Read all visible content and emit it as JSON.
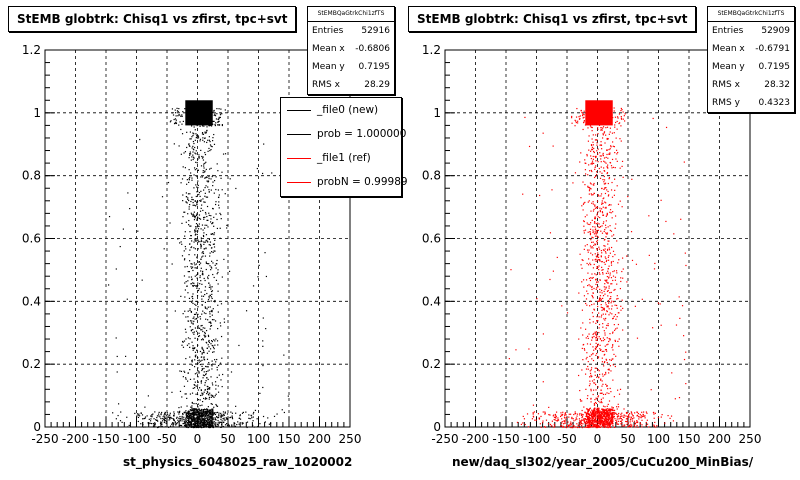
{
  "charts": [
    {
      "id": "left",
      "title": "StEMB globtrk: Chisq1 vs zfirst, tpc+svt",
      "stats": {
        "name": "StEMBQaGtrkChi1zfTS",
        "entries_label": "Entries",
        "entries": "52916",
        "mean_x_label": "Mean x",
        "mean_x": "-0.6806",
        "mean_y_label": "Mean y",
        "mean_y": "0.7195",
        "rms_x_label": "RMS x",
        "rms_x": "28.29"
      },
      "legend": [
        {
          "label": "_file0 (new)",
          "color": "#000000"
        },
        {
          "label": "prob = 1.000000",
          "color": "#000000"
        },
        {
          "label": "_file1 (ref)",
          "color": "#ff0000"
        },
        {
          "label": "probN = 0.99989",
          "color": "#ff0000"
        }
      ],
      "xlabel": "st_physics_6048025_raw_1020002",
      "color": "#000000"
    },
    {
      "id": "right",
      "title": "StEMB globtrk: Chisq1 vs zfirst, tpc+svt",
      "stats": {
        "name": "StEMBQaGtrkChi1zfTS",
        "entries_label": "Entries",
        "entries": "52909",
        "mean_x_label": "Mean x",
        "mean_x": "-0.6791",
        "mean_y_label": "Mean y",
        "mean_y": "0.7195",
        "rms_x_label": "RMS x",
        "rms_x": "28.32",
        "rms_y_label": "RMS y",
        "rms_y": "0.4323"
      },
      "xlabel": "new/daq_sl302/year_2005/CuCu200_MinBias/",
      "color": "#ff0000"
    }
  ],
  "chart_data": [
    {
      "type": "scatter",
      "xlim": [
        -250,
        250
      ],
      "ylim": [
        0,
        1.2
      ],
      "xticks": [
        -250,
        -200,
        -150,
        -100,
        -50,
        0,
        50,
        100,
        150,
        200,
        250
      ],
      "yticks": [
        0,
        0.2,
        0.4,
        0.6,
        0.8,
        1,
        1.2
      ],
      "grid": true,
      "clusters": [
        {
          "x": [
            -20,
            25
          ],
          "y": [
            0.96,
            1.02
          ],
          "density": "dense"
        },
        {
          "x": [
            -20,
            25
          ],
          "y": [
            0.0,
            0.05
          ],
          "density": "dense"
        },
        {
          "x": [
            -150,
            150
          ],
          "y": [
            0.0,
            0.05
          ],
          "density": "sparse"
        },
        {
          "x": [
            -50,
            40
          ],
          "y": [
            0.05,
            0.96
          ],
          "density": "sparse"
        }
      ],
      "marker_color": "#000000"
    },
    {
      "type": "scatter",
      "xlim": [
        -250,
        250
      ],
      "ylim": [
        0,
        1.2
      ],
      "xticks": [
        -250,
        -200,
        -150,
        -100,
        -50,
        0,
        50,
        100,
        150,
        200,
        250
      ],
      "yticks": [
        0,
        0.2,
        0.4,
        0.6,
        0.8,
        1,
        1.2
      ],
      "grid": true,
      "clusters": [
        {
          "x": [
            -20,
            25
          ],
          "y": [
            0.96,
            1.02
          ],
          "density": "dense"
        },
        {
          "x": [
            -20,
            25
          ],
          "y": [
            0.0,
            0.05
          ],
          "density": "dense"
        },
        {
          "x": [
            -150,
            150
          ],
          "y": [
            0.0,
            0.05
          ],
          "density": "sparse"
        },
        {
          "x": [
            -50,
            40
          ],
          "y": [
            0.05,
            0.96
          ],
          "density": "sparse"
        }
      ],
      "marker_color": "#ff0000"
    }
  ]
}
